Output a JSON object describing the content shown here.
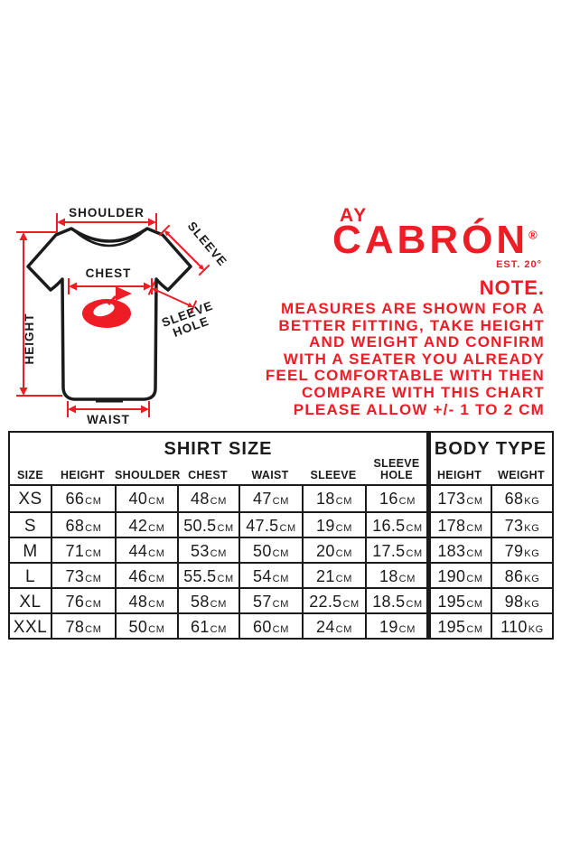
{
  "colors": {
    "accent_red": "#ee1c25",
    "ink": "#1b1b1b",
    "background": "#ffffff"
  },
  "diagram": {
    "labels": {
      "shoulder": "SHOULDER",
      "chest": "CHEST",
      "height": "HEIGHT",
      "waist": "WAIST",
      "sleeve": "SLEEVE",
      "sleeve_hole_line1": "SLEEVE",
      "sleeve_hole_line2": "HOLE"
    }
  },
  "brand": {
    "top": "AY",
    "name": "CABRÓN",
    "registered": "®",
    "est": "EST. 20°"
  },
  "note": {
    "heading": "NOTE.",
    "lines": [
      "MEASURES ARE SHOWN FOR A",
      "BETTER FITTING, TAKE HEIGHT",
      "AND WEIGHT AND CONFIRM",
      "WITH A SEATER YOU ALREADY",
      "FEEL COMFORTABLE WITH THEN",
      "COMPARE WITH THIS CHART",
      "PLEASE ALLOW +/- 1 TO 2 CM"
    ]
  },
  "table": {
    "group_headers": {
      "shirt": "SHIRT SIZE",
      "body": "BODY TYPE"
    },
    "columns": [
      "SIZE",
      "HEIGHT",
      "SHOULDER",
      "CHEST",
      "WAIST",
      "SLEEVE",
      "SLEEVE HOLE",
      "HEIGHT",
      "WEIGHT"
    ],
    "units": [
      "",
      "CM",
      "CM",
      "CM",
      "CM",
      "CM",
      "CM",
      "CM",
      "KG"
    ],
    "rows": [
      {
        "size": "XS",
        "values": [
          "66",
          "40",
          "48",
          "47",
          "18",
          "16",
          "173",
          "68"
        ]
      },
      {
        "size": "S",
        "values": [
          "68",
          "42",
          "50.5",
          "47.5",
          "19",
          "16.5",
          "178",
          "73"
        ]
      },
      {
        "size": "M",
        "values": [
          "71",
          "44",
          "53",
          "50",
          "20",
          "17.5",
          "183",
          "79"
        ]
      },
      {
        "size": "L",
        "values": [
          "73",
          "46",
          "55.5",
          "54",
          "21",
          "18",
          "190",
          "86"
        ]
      },
      {
        "size": "XL",
        "values": [
          "76",
          "48",
          "58",
          "57",
          "22.5",
          "18.5",
          "195",
          "98"
        ]
      },
      {
        "size": "XXL",
        "values": [
          "78",
          "50",
          "61",
          "60",
          "24",
          "19",
          "195",
          "110"
        ]
      }
    ]
  }
}
